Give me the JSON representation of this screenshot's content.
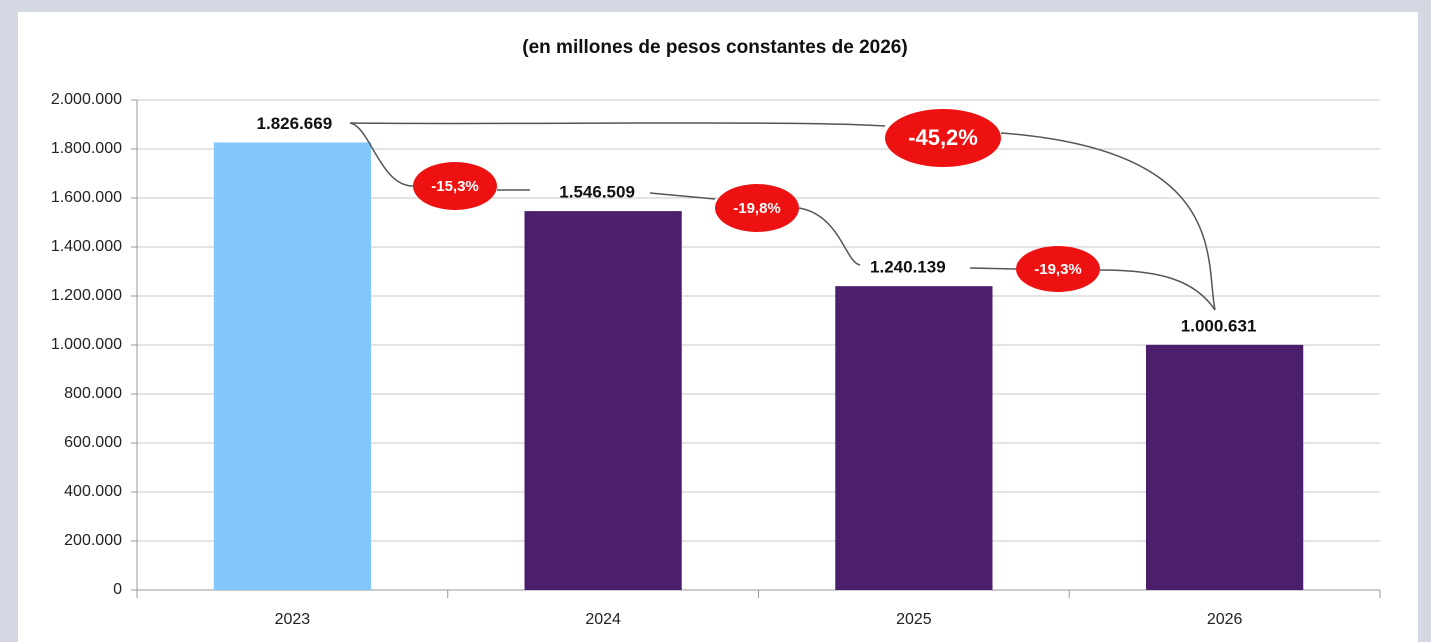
{
  "chart_data": {
    "type": "bar",
    "title": "(en millones de pesos constantes de 2026)",
    "categories": [
      "2023",
      "2024",
      "2025",
      "2026"
    ],
    "values": [
      1826669,
      1546509,
      1240139,
      1000631
    ],
    "value_labels": [
      "1.826.669",
      "1.546.509",
      "1.240.139",
      "1.000.631"
    ],
    "colors": [
      "#82c8ff",
      "#4b1f6b",
      "#4b1f6b",
      "#4b1f6b"
    ],
    "ylim": [
      0,
      2000000
    ],
    "yticks": [
      0,
      {
        "value": 200000,
        "label": "200.000"
      },
      {
        "value": 400000,
        "label": "400.000"
      },
      {
        "value": 600000,
        "label": "600.000"
      },
      {
        "value": 800000,
        "label": "800.000"
      },
      {
        "value": 1000000,
        "label": "1.000.000"
      },
      {
        "value": 1200000,
        "label": "1.200.000"
      },
      {
        "value": 1400000,
        "label": "1.400.000"
      },
      {
        "value": 1600000,
        "label": "1.600.000"
      },
      {
        "value": 1800000,
        "label": "1.800.000"
      },
      {
        "value": 2000000,
        "label": "2.000.000"
      }
    ],
    "grid": true,
    "annotations": [
      "-15,3%",
      "-19,8%",
      "-19,3%",
      "-45,2%"
    ]
  }
}
